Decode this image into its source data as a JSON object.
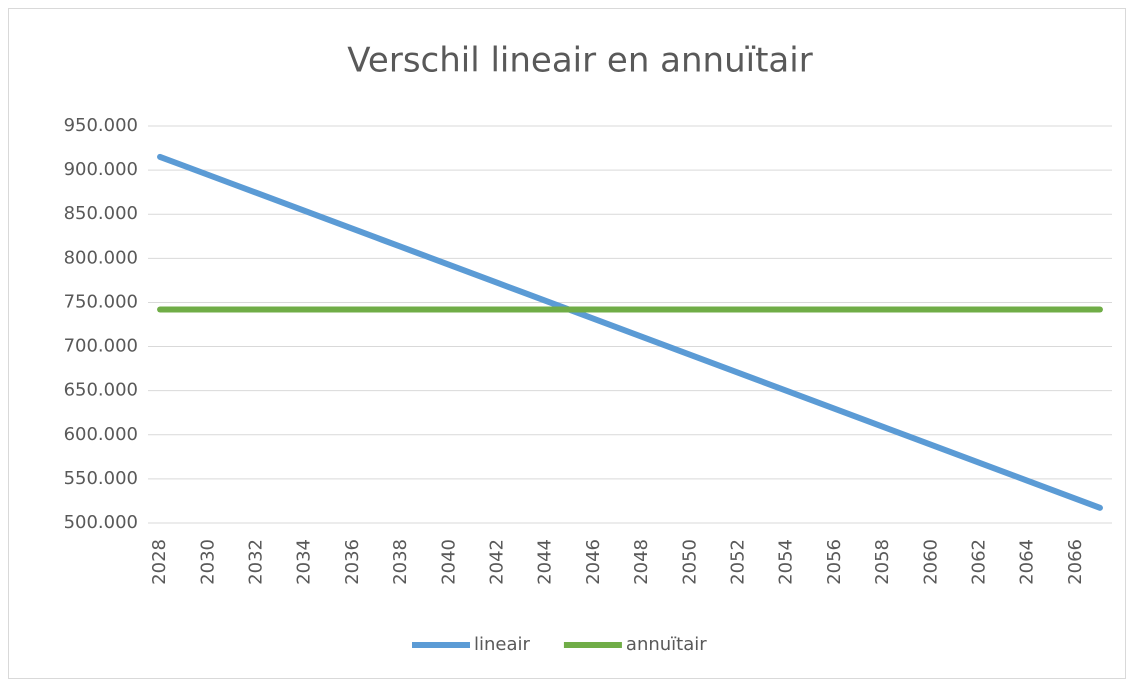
{
  "chart_data": {
    "type": "line",
    "title": "Verschil lineair en annuïtair",
    "categories": [
      "2028",
      null,
      "2030",
      null,
      "2032",
      null,
      "2034",
      null,
      "2036",
      null,
      "2038",
      null,
      "2040",
      null,
      "2042",
      null,
      "2044",
      null,
      "2046",
      null,
      "2048",
      null,
      "2050",
      null,
      "2052",
      null,
      "2054",
      null,
      "2056",
      null,
      "2058",
      null,
      "2060",
      null,
      "2062",
      null,
      "2064",
      null,
      "2066",
      null
    ],
    "series": [
      {
        "name": "lineair",
        "color": "#5b9bd5",
        "values": [
          915000,
          904800,
          894600,
          884400,
          874200,
          864000,
          853800,
          843600,
          833400,
          823200,
          813000,
          802800,
          792600,
          782400,
          772200,
          762000,
          751800,
          741600,
          731400,
          721200,
          711000,
          700800,
          690600,
          680400,
          670200,
          660000,
          649800,
          639600,
          629400,
          619200,
          609000,
          598800,
          588600,
          578400,
          568200,
          558000,
          547800,
          537600,
          527400,
          517200
        ]
      },
      {
        "name": "annuïtair",
        "color": "#70ad47",
        "values": [
          742000,
          742000,
          742000,
          742000,
          742000,
          742000,
          742000,
          742000,
          742000,
          742000,
          742000,
          742000,
          742000,
          742000,
          742000,
          742000,
          742000,
          742000,
          742000,
          742000,
          742000,
          742000,
          742000,
          742000,
          742000,
          742000,
          742000,
          742000,
          742000,
          742000,
          742000,
          742000,
          742000,
          742000,
          742000,
          742000,
          742000,
          742000,
          742000,
          742000
        ]
      }
    ],
    "ylim": [
      500000,
      950000
    ],
    "yticks": [
      {
        "value": 500000,
        "label": "500.000"
      },
      {
        "value": 550000,
        "label": "550.000"
      },
      {
        "value": 600000,
        "label": "600.000"
      },
      {
        "value": 650000,
        "label": "650.000"
      },
      {
        "value": 700000,
        "label": "700.000"
      },
      {
        "value": 750000,
        "label": "750.000"
      },
      {
        "value": 800000,
        "label": "800.000"
      },
      {
        "value": 850000,
        "label": "850.000"
      },
      {
        "value": 900000,
        "label": "900.000"
      },
      {
        "value": 950000,
        "label": "950.000"
      }
    ],
    "grid": true,
    "legend": "bottom"
  }
}
